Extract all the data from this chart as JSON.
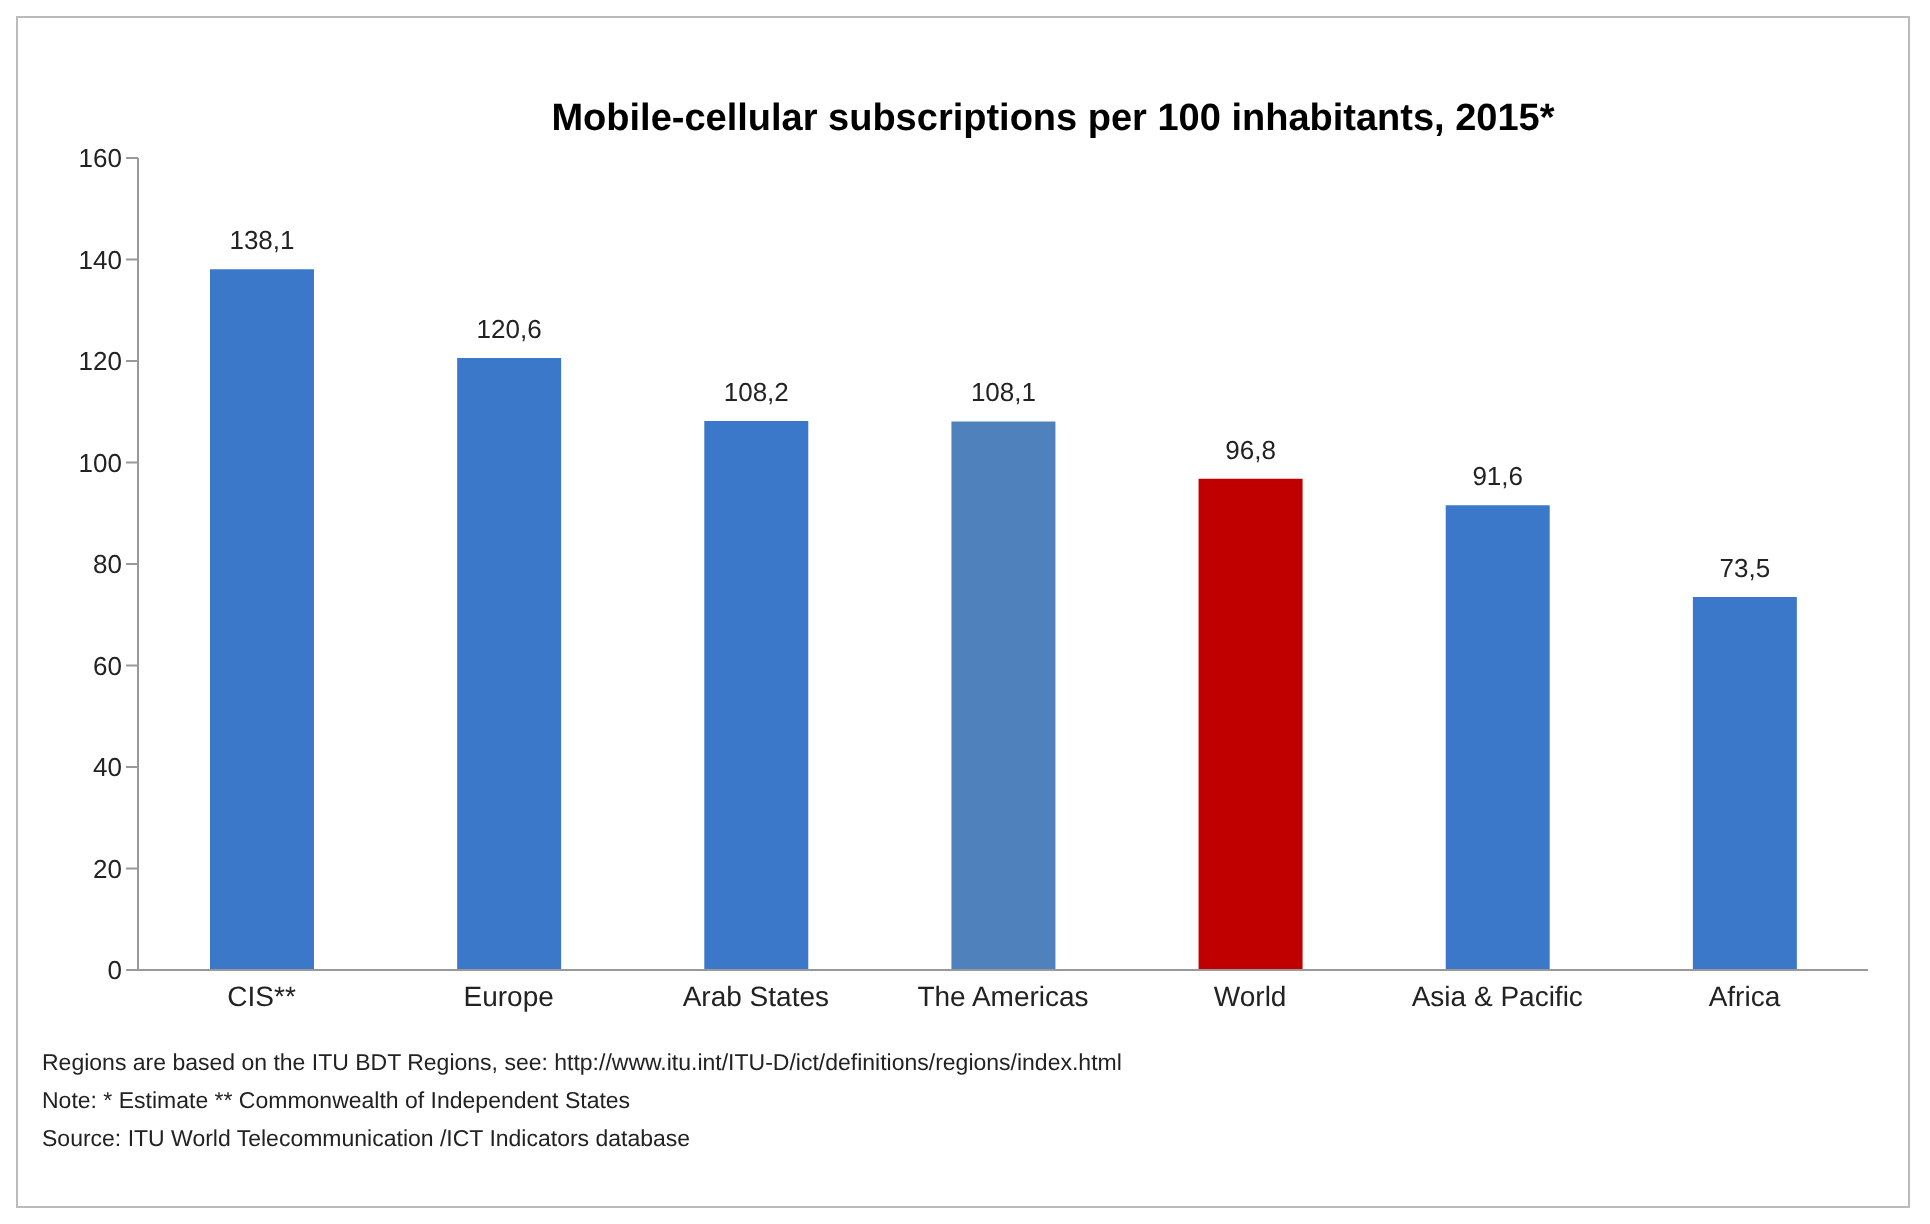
{
  "chart_data": {
    "type": "bar",
    "title": "Mobile-cellular subscriptions per 100 inhabitants, 2015*",
    "categories": [
      "CIS**",
      "Europe",
      "Arab States",
      "The Americas",
      "World",
      "Asia & Pacific",
      "Africa"
    ],
    "values": [
      138.1,
      120.6,
      108.2,
      108.1,
      96.8,
      91.6,
      73.5
    ],
    "value_labels": [
      "138,1",
      "120,6",
      "108,2",
      "108,1",
      "96,8",
      "91,6",
      "73,5"
    ],
    "colors": [
      "#3b78c9",
      "#3b78c9",
      "#3b78c9",
      "#4f82bd",
      "#c00000",
      "#3b78c9",
      "#3b78c9"
    ],
    "ylim": [
      0,
      160
    ],
    "yticks": [
      0,
      20,
      40,
      60,
      80,
      100,
      120,
      140,
      160
    ],
    "grid": false,
    "legend": false,
    "annotations": [
      "Regions are based on the ITU BDT Regions, see: http://www.itu.int/ITU-D/ict/definitions/regions/index.html",
      "Note: * Estimate ** Commonwealth of Independent States",
      "Source: ITU World Telecommunication /ICT Indicators database"
    ]
  }
}
